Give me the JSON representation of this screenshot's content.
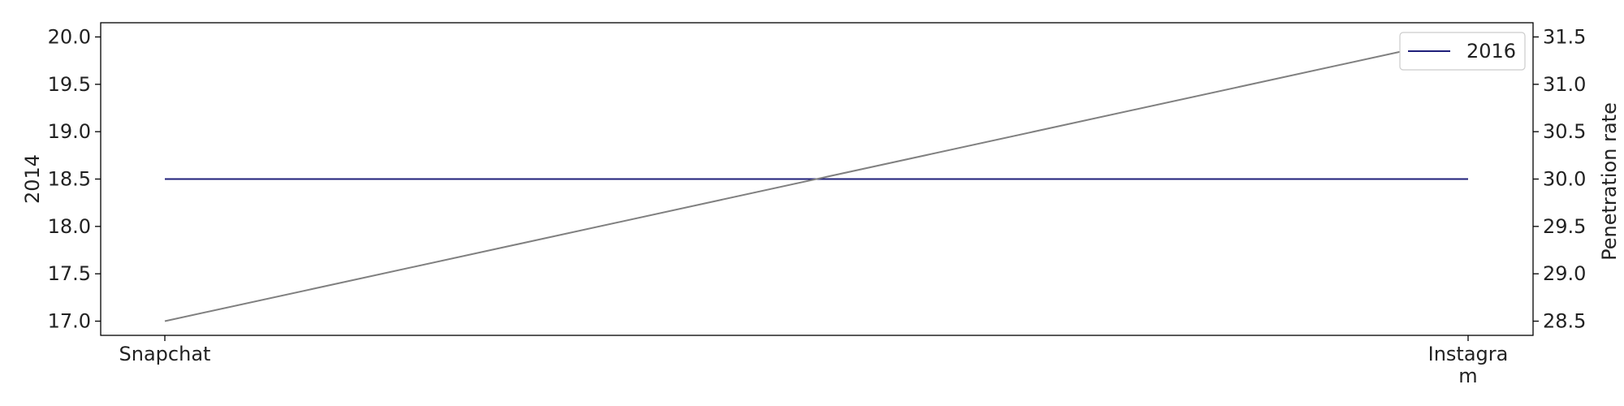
{
  "chart_data": {
    "type": "line",
    "categories": [
      "Snapchat",
      "Instagram"
    ],
    "category_tick_labels": [
      [
        "Snapchat"
      ],
      [
        "Instagra",
        "m"
      ]
    ],
    "series": [
      {
        "name": "2016",
        "axis": "left",
        "values": [
          18.5,
          18.5
        ],
        "color": "#1f1f7a"
      },
      {
        "axis": "right",
        "values": [
          28.5,
          31.5
        ],
        "color": "#808080"
      }
    ],
    "left_axis": {
      "label": "2014",
      "ylim": [
        16.85,
        20.15
      ],
      "ticks": [
        17.0,
        17.5,
        18.0,
        18.5,
        19.0,
        19.5,
        20.0
      ],
      "tick_labels": [
        "17.0",
        "17.5",
        "18.0",
        "18.5",
        "19.0",
        "19.5",
        "20.0"
      ]
    },
    "right_axis": {
      "label": "Penetration rate",
      "ylim": [
        28.35,
        31.65
      ],
      "ticks": [
        28.5,
        29.0,
        29.5,
        30.0,
        30.5,
        31.0,
        31.5
      ],
      "tick_labels": [
        "28.5",
        "29.0",
        "29.5",
        "30.0",
        "30.5",
        "31.0",
        "31.5"
      ]
    },
    "grid": false,
    "legend": {
      "position": "top-right",
      "entries": [
        "2016"
      ]
    }
  }
}
